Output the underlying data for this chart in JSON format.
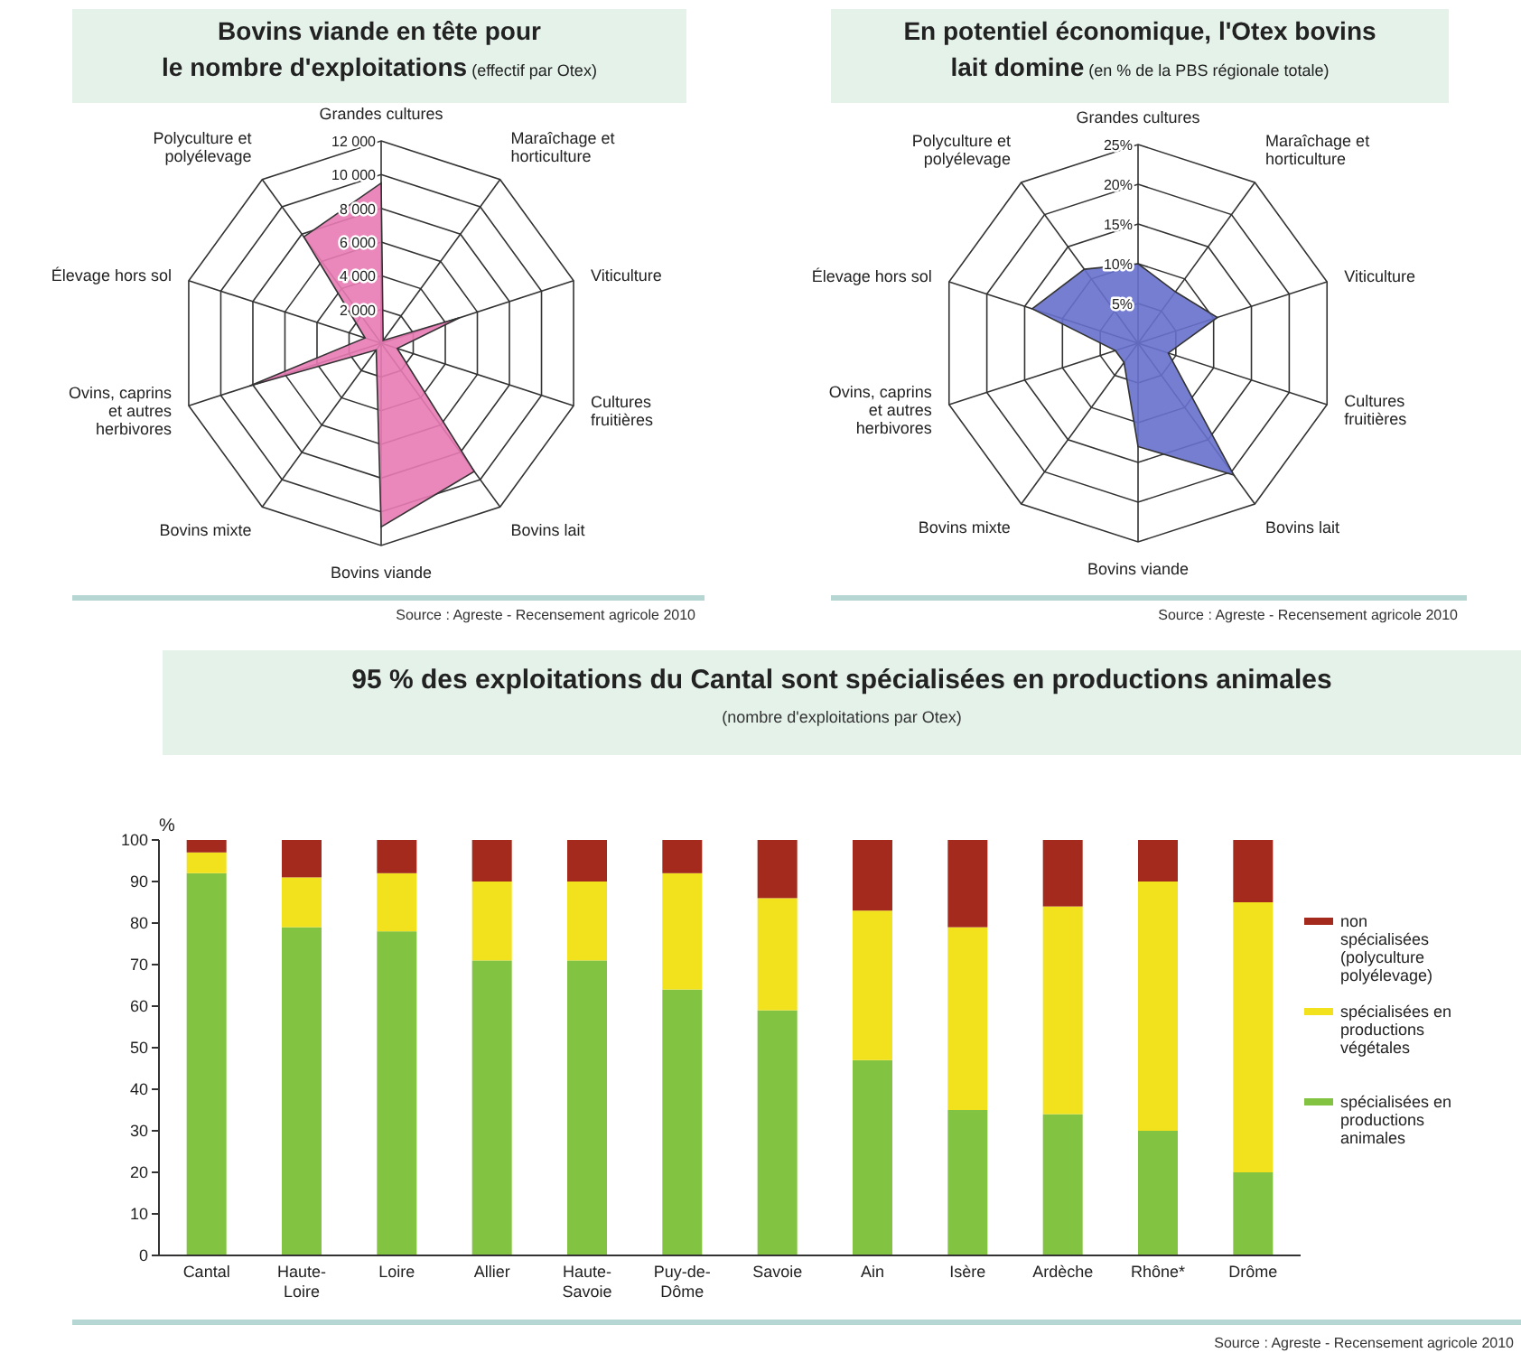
{
  "chart_data": [
    {
      "type": "radar",
      "title": "Bovins viande en tête pour le nombre d'exploitations",
      "subtitle": "(effectif par Otex)",
      "categories": [
        "Grandes cultures",
        "Maraîchage et horticulture",
        "Viticulture",
        "Cultures fruitières",
        "Bovins lait",
        "Bovins viande",
        "Bovins mixte",
        "Ovins, caprins et autres herbivores",
        "Élevage hors sol",
        "Polyculture et polyélevage"
      ],
      "series": [
        {
          "color": "#e87ab4",
          "values": [
            9500,
            200,
            4900,
            1000,
            9400,
            10900,
            500,
            8200,
            1000,
            7800
          ]
        }
      ],
      "ylim": [
        0,
        12000
      ],
      "yticks": [
        {
          "value": 2000,
          "label": "2 000"
        },
        {
          "value": 4000,
          "label": "4 000"
        },
        {
          "value": 6000,
          "label": "6 000"
        },
        {
          "value": 8000,
          "label": "8 000"
        },
        {
          "value": 10000,
          "label": "10 000"
        },
        {
          "value": 12000,
          "label": "12 000"
        }
      ],
      "grid": true,
      "annotations": [
        "Source : Agreste - Recensement agricole 2010"
      ]
    },
    {
      "type": "radar",
      "title": "En potentiel économique, l'Otex bovins lait domine",
      "subtitle": "(en % de la PBS régionale totale)",
      "categories": [
        "Grandes cultures",
        "Maraîchage et horticulture",
        "Viticulture",
        "Cultures fruitières",
        "Bovins lait",
        "Bovins viande",
        "Bovins mixte",
        "Ovins, caprins et autres herbivores",
        "Élevage hors sol",
        "Polyculture et polyélevage"
      ],
      "series": [
        {
          "color": "#6670cc",
          "values": [
            10,
            8,
            10.5,
            4,
            20.5,
            13,
            3,
            3,
            14,
            11.5
          ]
        }
      ],
      "ylim": [
        0,
        25
      ],
      "yticks": [
        {
          "value": 5,
          "label": "5%"
        },
        {
          "value": 10,
          "label": "10%"
        },
        {
          "value": 15,
          "label": "15%"
        },
        {
          "value": 20,
          "label": "20%"
        },
        {
          "value": 25,
          "label": "25%"
        }
      ],
      "grid": true,
      "annotations": [
        "Source : Agreste - Recensement agricole 2010"
      ]
    },
    {
      "type": "bar",
      "stacked": true,
      "title": "95 % des exploitations du Cantal sont spécialisées en productions animales",
      "subtitle": "(nombre d'exploitations par Otex)",
      "ylabel": "%",
      "categories": [
        "Cantal",
        "Haute-Loire",
        "Loire",
        "Allier",
        "Haute-Savoie",
        "Puy-de-Dôme",
        "Savoie",
        "Ain",
        "Isère",
        "Ardèche",
        "Rhône*",
        "Drôme"
      ],
      "series": [
        {
          "name": "spécialisées en productions animales",
          "color": "#82c341",
          "values": [
            92,
            79,
            78,
            71,
            71,
            64,
            59,
            47,
            35,
            34,
            30,
            20
          ]
        },
        {
          "name": "spécialisées en productions végétales",
          "color": "#f2e21e",
          "values": [
            5,
            12,
            14,
            19,
            19,
            28,
            27,
            36,
            44,
            50,
            60,
            65
          ]
        },
        {
          "name": "non spécialisées (polyculture polyélevage)",
          "color": "#a32a1c",
          "values": [
            3,
            9,
            8,
            10,
            10,
            8,
            14,
            17,
            21,
            16,
            10,
            15
          ]
        }
      ],
      "ylim": [
        0,
        100
      ],
      "yticks": [
        0,
        10,
        20,
        30,
        40,
        50,
        60,
        70,
        80,
        90,
        100
      ],
      "legend": "right",
      "annotations": [
        "Source : Agreste - Recensement agricole 2010"
      ]
    }
  ]
}
